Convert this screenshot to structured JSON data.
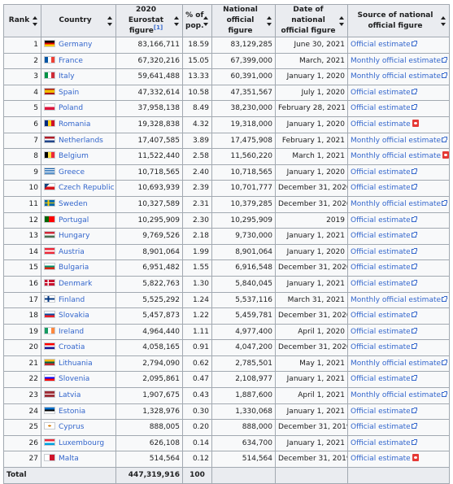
{
  "headers": {
    "rank": "Rank",
    "country": "Country",
    "eurostat_line1": "2020",
    "eurostat_line2": "Eurostat figure",
    "eurostat_ref": "[1]",
    "pct_line1": "% of",
    "pct_line2": "pop.",
    "national_line1": "National",
    "national_line2": "official figure",
    "date_line1": "Date of national",
    "date_line2": "official figure",
    "source_line1": "Source of national",
    "source_line2": "official figure"
  },
  "rows": [
    {
      "rank": "1",
      "country": "Germany",
      "flag": "de",
      "eurostat": "83,166,711",
      "pct": "18.59",
      "national": "83,129,285",
      "date": "June 30, 2021",
      "source": "Official estimate",
      "pdf": false
    },
    {
      "rank": "2",
      "country": "France",
      "flag": "fr",
      "eurostat": "67,320,216",
      "pct": "15.05",
      "national": "67,399,000",
      "date": "March, 2021",
      "source": "Monthly official estimate",
      "pdf": false
    },
    {
      "rank": "3",
      "country": "Italy",
      "flag": "it",
      "eurostat": "59,641,488",
      "pct": "13.33",
      "national": "60,391,000",
      "date": "January 1, 2020",
      "source": "Monthly official estimate",
      "pdf": false
    },
    {
      "rank": "4",
      "country": "Spain",
      "flag": "es",
      "eurostat": "47,332,614",
      "pct": "10.58",
      "national": "47,351,567",
      "date": "July 1, 2020",
      "source": "Official estimate",
      "pdf": false
    },
    {
      "rank": "5",
      "country": "Poland",
      "flag": "pl",
      "eurostat": "37,958,138",
      "pct": "8.49",
      "national": "38,230,000",
      "date": "February 28, 2021",
      "source": "Official estimate",
      "pdf": false
    },
    {
      "rank": "6",
      "country": "Romania",
      "flag": "ro",
      "eurostat": "19,328,838",
      "pct": "4.32",
      "national": "19,318,000",
      "date": "January 1, 2020",
      "source": "Official estimate",
      "pdf": true
    },
    {
      "rank": "7",
      "country": "Netherlands",
      "flag": "nl",
      "eurostat": "17,407,585",
      "pct": "3.89",
      "national": "17,475,908",
      "date": "February 1, 2021",
      "source": "Monthly official estimate",
      "pdf": false
    },
    {
      "rank": "8",
      "country": "Belgium",
      "flag": "be",
      "eurostat": "11,522,440",
      "pct": "2.58",
      "national": "11,560,220",
      "date": "March 1, 2021",
      "source": "Monthly official estimate",
      "pdf": true
    },
    {
      "rank": "9",
      "country": "Greece",
      "flag": "gr",
      "eurostat": "10,718,565",
      "pct": "2.40",
      "national": "10,718,565",
      "date": "January 1, 2020",
      "source": "Official estimate",
      "pdf": false
    },
    {
      "rank": "10",
      "country": "Czech Republic",
      "flag": "cz",
      "eurostat": "10,693,939",
      "pct": "2.39",
      "national": "10,701,777",
      "date": "December 31, 2020",
      "source": "Official estimate",
      "pdf": false
    },
    {
      "rank": "11",
      "country": "Sweden",
      "flag": "se",
      "eurostat": "10,327,589",
      "pct": "2.31",
      "national": "10,379,285",
      "date": "December 31, 2020",
      "source": "Monthly official estimate",
      "pdf": false
    },
    {
      "rank": "12",
      "country": "Portugal",
      "flag": "pt",
      "eurostat": "10,295,909",
      "pct": "2.30",
      "national": "10,295,909",
      "date": "2019",
      "source": "Official estimate",
      "pdf": false
    },
    {
      "rank": "13",
      "country": "Hungary",
      "flag": "hu",
      "eurostat": "9,769,526",
      "pct": "2.18",
      "national": "9,730,000",
      "date": "January 1, 2021",
      "source": "Official estimate",
      "pdf": false
    },
    {
      "rank": "14",
      "country": "Austria",
      "flag": "at",
      "eurostat": "8,901,064",
      "pct": "1.99",
      "national": "8,901,064",
      "date": "January 1, 2020",
      "source": "Official estimate",
      "pdf": false
    },
    {
      "rank": "15",
      "country": "Bulgaria",
      "flag": "bg",
      "eurostat": "6,951,482",
      "pct": "1.55",
      "national": "6,916,548",
      "date": "December 31, 2020",
      "source": "Official estimate",
      "pdf": false
    },
    {
      "rank": "16",
      "country": "Denmark",
      "flag": "dk",
      "eurostat": "5,822,763",
      "pct": "1.30",
      "national": "5,840,045",
      "date": "January 1, 2021",
      "source": "Official estimate",
      "pdf": false
    },
    {
      "rank": "17",
      "country": "Finland",
      "flag": "fi",
      "eurostat": "5,525,292",
      "pct": "1.24",
      "national": "5,537,116",
      "date": "March 31, 2021",
      "source": "Monthly official estimate",
      "pdf": false
    },
    {
      "rank": "18",
      "country": "Slovakia",
      "flag": "sk",
      "eurostat": "5,457,873",
      "pct": "1.22",
      "national": "5,459,781",
      "date": "December 31, 2020",
      "source": "Official estimate",
      "pdf": false
    },
    {
      "rank": "19",
      "country": "Ireland",
      "flag": "ie",
      "eurostat": "4,964,440",
      "pct": "1.11",
      "national": "4,977,400",
      "date": "April 1, 2020",
      "source": "Official estimate",
      "pdf": false
    },
    {
      "rank": "20",
      "country": "Croatia",
      "flag": "hr",
      "eurostat": "4,058,165",
      "pct": "0.91",
      "national": "4,047,200",
      "date": "December 31, 2020",
      "source": "Official estimate",
      "pdf": false
    },
    {
      "rank": "21",
      "country": "Lithuania",
      "flag": "lt",
      "eurostat": "2,794,090",
      "pct": "0.62",
      "national": "2,785,501",
      "date": "May 1, 2021",
      "source": "Monthly official estimate",
      "pdf": false
    },
    {
      "rank": "22",
      "country": "Slovenia",
      "flag": "si",
      "eurostat": "2,095,861",
      "pct": "0.47",
      "national": "2,108,977",
      "date": "January 1, 2021",
      "source": "Official estimate",
      "pdf": false
    },
    {
      "rank": "23",
      "country": "Latvia",
      "flag": "lv",
      "eurostat": "1,907,675",
      "pct": "0.43",
      "national": "1,887,600",
      "date": "April 1, 2021",
      "source": "Monthly official estimate",
      "pdf": false
    },
    {
      "rank": "24",
      "country": "Estonia",
      "flag": "ee",
      "eurostat": "1,328,976",
      "pct": "0.30",
      "national": "1,330,068",
      "date": "January 1, 2021",
      "source": "Official estimate",
      "pdf": false
    },
    {
      "rank": "25",
      "country": "Cyprus",
      "flag": "cy",
      "eurostat": "888,005",
      "pct": "0.20",
      "national": "888,000",
      "date": "December 31, 2019",
      "source": "Official estimate",
      "pdf": false
    },
    {
      "rank": "26",
      "country": "Luxembourg",
      "flag": "lu",
      "eurostat": "626,108",
      "pct": "0.14",
      "national": "634,700",
      "date": "January 1, 2021",
      "source": "Official estimate",
      "pdf": false
    },
    {
      "rank": "27",
      "country": "Malta",
      "flag": "mt",
      "eurostat": "514,564",
      "pct": "0.12",
      "national": "514,564",
      "date": "December 31, 2019",
      "source": "Official estimate",
      "pdf": true
    }
  ],
  "total": {
    "label": "Total",
    "eurostat": "447,319,916",
    "pct": "100"
  },
  "colors": {
    "link": "#3366cc",
    "header_bg": "#eaecf0",
    "cell_bg": "#f8f9fa",
    "border": "#a2a9b1"
  }
}
